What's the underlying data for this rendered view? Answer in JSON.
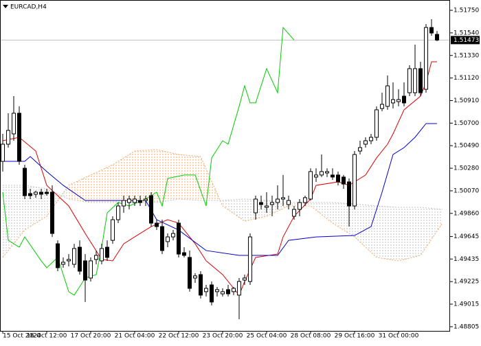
{
  "chart_data": {
    "type": "candlestick",
    "title": "EURCAD,H4",
    "xlim": [
      -0.5,
      81.375
    ],
    "xticks": [
      {
        "value": 0,
        "label": "15 Oct 2024"
      },
      {
        "value": 8,
        "label": "16 Oct 12:00"
      },
      {
        "value": 16,
        "label": "17 Oct 20:00"
      },
      {
        "value": 24,
        "label": "21 Oct 04:00"
      },
      {
        "value": 32,
        "label": "22 Oct 12:00"
      },
      {
        "value": 40,
        "label": "23 Oct 20:00"
      },
      {
        "value": 48,
        "label": "25 Oct 04:00"
      },
      {
        "value": 56,
        "label": "28 Oct 08:00"
      },
      {
        "value": 64,
        "label": "29 Oct 16:00"
      },
      {
        "value": 72,
        "label": "31 Oct 00:00"
      }
    ],
    "ylim": [
      1.48766,
      1.51846
    ],
    "yticks": [
      {
        "value": 1.5175,
        "label": "1.51750"
      },
      {
        "value": 1.5154,
        "label": "1.51540"
      },
      {
        "value": 1.5133,
        "label": "1.51330"
      },
      {
        "value": 1.5112,
        "label": "1.51120"
      },
      {
        "value": 1.5091,
        "label": "1.50910"
      },
      {
        "value": 1.507,
        "label": "1.50700"
      },
      {
        "value": 1.5049,
        "label": "1.50490"
      },
      {
        "value": 1.5028,
        "label": "1.50280"
      },
      {
        "value": 1.5007,
        "label": "1.50070"
      },
      {
        "value": 1.4986,
        "label": "1.49860"
      },
      1.49645,
      1.49435,
      1.49225,
      1.49015,
      1.48805
    ],
    "current_price": 1.51473,
    "current_price_color": "#c0c0c0",
    "candles": {
      "bull_color": "#ffffff",
      "bear_color": "#000000",
      "open": [
        1.50344,
        1.50504,
        1.506,
        1.50792,
        1.5028,
        1.50044,
        1.50038,
        1.50057,
        1.50057,
        1.50057,
        1.49577,
        1.49386,
        1.49418,
        1.49386,
        1.49545,
        1.49418,
        1.49258,
        1.49431,
        1.49418,
        1.49545,
        1.49609,
        1.49801,
        1.49929,
        1.49961,
        1.49961,
        1.4998,
        1.4998,
        1.50025,
        1.49769,
        1.49737,
        1.49597,
        1.49641,
        1.49769,
        1.49494,
        1.4945,
        1.49258,
        1.4929,
        1.49131,
        1.49194,
        1.49131,
        1.49111,
        1.4915,
        1.49131,
        1.49099,
        1.49239,
        1.49226,
        1.49865,
        1.49961,
        1.49916,
        1.49942,
        1.49961,
        1.49993,
        1.49942,
        1.49833,
        1.49897,
        1.49961,
        1.49993,
        1.50198,
        1.50217,
        1.50236,
        1.50217,
        1.50217,
        1.50198,
        1.50153,
        1.49929,
        1.5044,
        1.50504,
        1.50536,
        1.50568,
        1.50836,
        1.50856,
        1.50888,
        1.509,
        1.50951,
        1.50983,
        1.50983,
        1.51207,
        1.51015,
        1.5159,
        1.51526
      ],
      "high": [
        1.506,
        1.50792,
        1.50951,
        1.50856,
        1.50312,
        1.50089,
        1.5007,
        1.50089,
        1.50089,
        1.50121,
        1.49609,
        1.4945,
        1.49481,
        1.49577,
        1.49609,
        1.49481,
        1.4945,
        1.49514,
        1.49577,
        1.49609,
        1.49833,
        1.49961,
        1.50025,
        1.50025,
        1.50025,
        1.50025,
        1.50025,
        1.50057,
        1.49801,
        1.49801,
        1.49673,
        1.49705,
        1.49801,
        1.49545,
        1.49514,
        1.49303,
        1.49322,
        1.49194,
        1.49226,
        1.49175,
        1.49162,
        1.49194,
        1.49175,
        1.49258,
        1.4929,
        1.49673,
        1.50025,
        1.50025,
        1.50057,
        1.50025,
        1.50121,
        1.50217,
        1.50025,
        1.49929,
        1.49993,
        1.50025,
        1.5028,
        1.5028,
        1.50408,
        1.5028,
        1.5028,
        1.50249,
        1.50217,
        1.50185,
        1.5044,
        1.50536,
        1.50568,
        1.506,
        1.50856,
        1.50983,
        1.51143,
        1.51079,
        1.51015,
        1.51079,
        1.51239,
        1.51431,
        1.51271,
        1.51622,
        1.51667,
        1.51558
      ],
      "low": [
        1.50249,
        1.50472,
        1.50536,
        1.50312,
        1.49993,
        1.49993,
        1.50006,
        1.49993,
        1.50025,
        1.49641,
        1.49322,
        1.49354,
        1.49367,
        1.49354,
        1.4929,
        1.49035,
        1.49226,
        1.49386,
        1.49386,
        1.49418,
        1.49577,
        1.49769,
        1.49865,
        1.49897,
        1.49929,
        1.49929,
        1.49929,
        1.49737,
        1.49705,
        1.49481,
        1.49545,
        1.49609,
        1.4945,
        1.4945,
        1.49131,
        1.49213,
        1.49067,
        1.49086,
        1.49003,
        1.49086,
        1.49086,
        1.49086,
        1.49099,
        1.48875,
        1.49194,
        1.49194,
        1.49801,
        1.49897,
        1.49865,
        1.49833,
        1.49897,
        1.49929,
        1.49897,
        1.49801,
        1.49833,
        1.49929,
        1.4998,
        1.50153,
        1.50198,
        1.50198,
        1.50172,
        1.50121,
        1.50089,
        1.49737,
        1.49897,
        1.50408,
        1.50472,
        1.50504,
        1.50536,
        1.50811,
        1.50824,
        1.50836,
        1.50856,
        1.50856,
        1.50951,
        1.50951,
        1.50951,
        1.50983,
        1.51514,
        1.51463
      ],
      "close": [
        1.50504,
        1.50632,
        1.50792,
        1.50344,
        1.50025,
        1.50025,
        1.50057,
        1.50038,
        1.50044,
        1.49673,
        1.49354,
        1.49405,
        1.49431,
        1.49533,
        1.49322,
        1.49239,
        1.49418,
        1.49469,
        1.49533,
        1.4945,
        1.49801,
        1.49929,
        1.4998,
        1.49993,
        1.49993,
        1.49961,
        1.49993,
        1.49769,
        1.49737,
        1.49514,
        1.49641,
        1.49673,
        1.49481,
        1.49469,
        1.49162,
        1.49278,
        1.49099,
        1.49162,
        1.49035,
        1.4915,
        1.49131,
        1.49111,
        1.49162,
        1.49226,
        1.49258,
        1.49641,
        1.49993,
        1.49942,
        1.49929,
        1.49961,
        1.49993,
        1.50006,
        1.4998,
        1.49897,
        1.49961,
        1.50006,
        1.50249,
        1.50217,
        1.50249,
        1.50249,
        1.50198,
        1.50153,
        1.50133,
        1.49929,
        1.50408,
        1.50472,
        1.50536,
        1.50568,
        1.50824,
        1.50875,
        1.51047,
        1.50919,
        1.50919,
        1.50888,
        1.51207,
        1.51207,
        1.50983,
        1.5159,
        1.51539,
        1.51473
      ]
    },
    "cloud": {
      "x": [
        0,
        4,
        8,
        12,
        16,
        20,
        24,
        28,
        32,
        36,
        40,
        44,
        48,
        52,
        56,
        60,
        64,
        68,
        72,
        76,
        80
      ],
      "span_a": {
        "color": "#f4a460",
        "values": [
          1.4945,
          1.49705,
          1.49833,
          1.50121,
          1.50217,
          1.50312,
          1.5044,
          1.50453,
          1.50408,
          1.50389,
          1.49929,
          1.49788,
          1.49833,
          1.49929,
          1.49929,
          1.49769,
          1.49641,
          1.4945,
          1.49418,
          1.49469,
          1.49769
        ]
      },
      "span_b": {
        "color": "#c0c0c0",
        "values": [
          1.50121,
          1.50121,
          1.50089,
          1.49993,
          1.49961,
          1.49961,
          1.49961,
          1.49961,
          1.49993,
          1.4998,
          1.4998,
          1.49993,
          1.4998,
          1.49961,
          1.49961,
          1.49961,
          1.49948,
          1.49929,
          1.49916,
          1.49916,
          1.49897
        ]
      }
    },
    "lines": [
      {
        "color": "#dd0000",
        "x": [
          0,
          3,
          6,
          8,
          12,
          15,
          18,
          20,
          22,
          25,
          27,
          30,
          32,
          35,
          37,
          40,
          43,
          44,
          46,
          50,
          51,
          53,
          56,
          57,
          61,
          63,
          66,
          68,
          70,
          71,
          73,
          76,
          77,
          78,
          79
        ],
        "values": [
          1.50536,
          1.50568,
          1.5044,
          1.50121,
          1.49929,
          1.49673,
          1.49431,
          1.49418,
          1.49577,
          1.49673,
          1.49737,
          1.49801,
          1.49769,
          1.49577,
          1.49418,
          1.4929,
          1.49099,
          1.49226,
          1.4945,
          1.49481,
          1.49641,
          1.49833,
          1.49993,
          1.50121,
          1.50153,
          1.50121,
          1.50217,
          1.50376,
          1.50504,
          1.506,
          1.50824,
          1.50951,
          1.51079,
          1.51271,
          1.51271
        ]
      },
      {
        "color": "#0000cc",
        "x": [
          0,
          4,
          5,
          8,
          11,
          15,
          26,
          28,
          32,
          37,
          43,
          50,
          52,
          57,
          64,
          67,
          69,
          71,
          73,
          75,
          77,
          79
        ],
        "values": [
          1.50344,
          1.50344,
          1.50389,
          1.50249,
          1.50121,
          1.4998,
          1.4998,
          1.49801,
          1.49705,
          1.49514,
          1.49469,
          1.49469,
          1.49609,
          1.49641,
          1.49654,
          1.49737,
          1.50057,
          1.50408,
          1.50472,
          1.50568,
          1.50696,
          1.50696
        ]
      },
      {
        "color": "#00cc00",
        "x": [
          0,
          1,
          3,
          4,
          7,
          8,
          10,
          11,
          12,
          13,
          15,
          17,
          18,
          19,
          21,
          23,
          26,
          28,
          29,
          30,
          33,
          35,
          37,
          38,
          40,
          41,
          43,
          44,
          45,
          46,
          48,
          50,
          51,
          53
        ],
        "values": [
          1.50057,
          1.49609,
          1.49545,
          1.49641,
          1.49418,
          1.49354,
          1.4945,
          1.4929,
          1.49131,
          1.49099,
          1.49258,
          1.4929,
          1.49545,
          1.49865,
          1.49961,
          1.49929,
          1.49993,
          1.50057,
          1.49929,
          1.50185,
          1.50217,
          1.50217,
          1.49929,
          1.50376,
          1.50536,
          1.50504,
          1.50856,
          1.51047,
          1.50888,
          1.50888,
          1.51207,
          1.50983,
          1.5159,
          1.51473
        ]
      }
    ]
  }
}
